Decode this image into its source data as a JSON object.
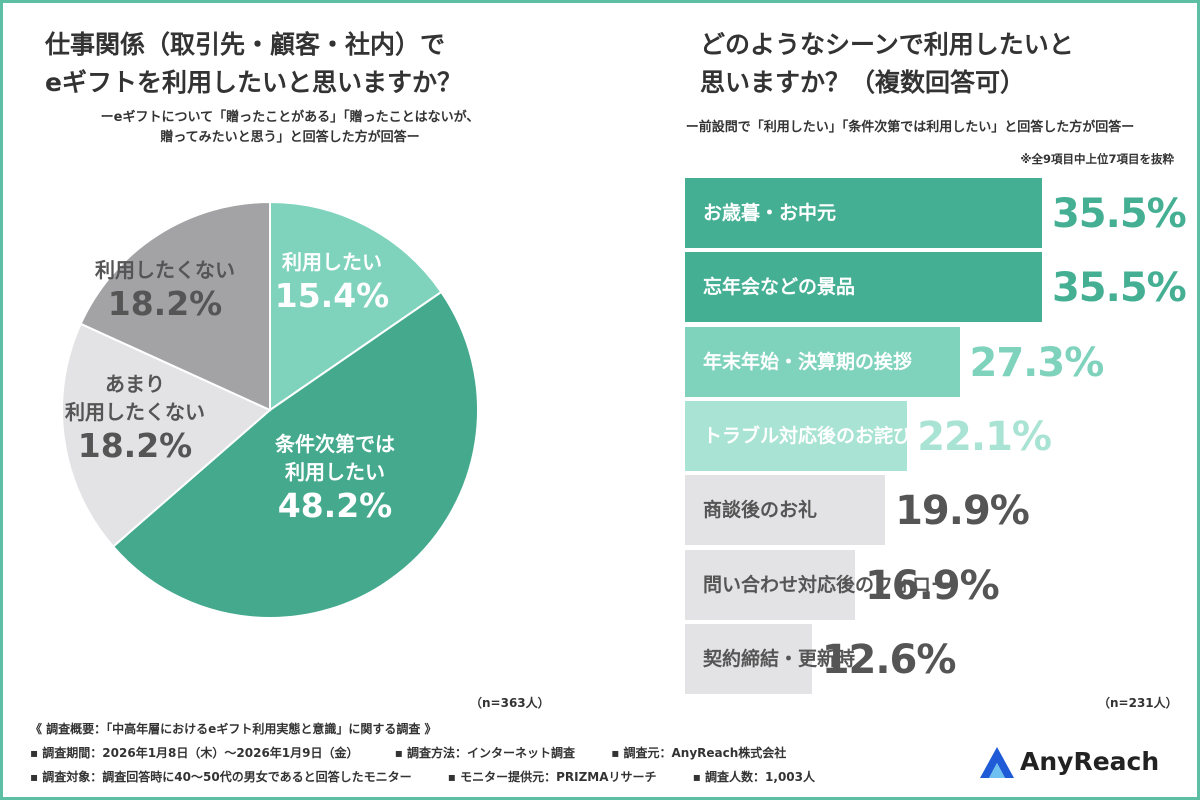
{
  "left": {
    "title_line1": "仕事関係（取引先・顧客・社内）で",
    "title_line2": "eギフトを利用したいと思いますか？",
    "subtitle_line1": "ーeギフトについて「贈ったことがある」「贈ったことはないが、",
    "subtitle_line2": "贈ってみたいと思う」と回答した方が回答ー",
    "n": "（n=363人）"
  },
  "right": {
    "title_line1": "どのようなシーンで利用したいと",
    "title_line2": "思いますか？（複数回答可）",
    "subtitle": "ー前設問で「利用したい」「条件次第では利用したい」と回答した方が回答ー",
    "note": "※全9項目中上位7項目を抜粋",
    "n": "（n=231人）"
  },
  "chart_data": [
    {
      "type": "pie",
      "start": "12 o'clock, clockwise",
      "slices": [
        {
          "label": "利用したい",
          "value": 15.4,
          "display": "15.4%",
          "color": "#7fd3bd",
          "text_color": "#ffffff"
        },
        {
          "label": "条件次第では 利用したい",
          "label_line1": "条件次第では",
          "label_line2": "利用したい",
          "value": 48.2,
          "display": "48.2%",
          "color": "#44a98d",
          "text_color": "#ffffff"
        },
        {
          "label": "あまり 利用したくない",
          "label_line1": "あまり",
          "label_line2": "利用したくない",
          "value": 18.2,
          "display": "18.2%",
          "color": "#e3e3e5",
          "text_color": "#555555"
        },
        {
          "label": "利用したくない",
          "value": 18.2,
          "display": "18.2%",
          "color": "#a3a3a6",
          "text_color": "#555555"
        }
      ]
    },
    {
      "type": "bar",
      "orientation": "horizontal",
      "xlim": [
        0,
        36
      ],
      "categories": [
        "お歳暮・お中元",
        "忘年会などの景品",
        "年末年始・決算期の挨拶",
        "トラブル対応後のお詫び",
        "商談後のお礼",
        "問い合わせ対応後のフォロー",
        "契約締結・更新時"
      ],
      "values": [
        35.5,
        35.5,
        27.3,
        22.1,
        19.9,
        16.9,
        12.6
      ],
      "labels": [
        "35.5%",
        "35.5%",
        "27.3%",
        "22.1%",
        "19.9%",
        "16.9%",
        "12.6%"
      ],
      "colors": [
        "#44af93",
        "#44af93",
        "#7fd3bd",
        "#a9e3d3",
        "#e3e3e5",
        "#e3e3e5",
        "#e3e3e5"
      ],
      "value_colors": [
        "#44af93",
        "#44af93",
        "#7fd3bd",
        "#a9e3d3",
        "#555555",
        "#555555",
        "#555555"
      ],
      "label_colors": [
        "#ffffff",
        "#ffffff",
        "#ffffff",
        "#ffffff",
        "#555555",
        "#555555",
        "#555555"
      ]
    }
  ],
  "footer": {
    "line1": "《 調査概要：「中高年層におけるeギフト利用実態と意識」に関する調査 》",
    "period": "▪ 調査期間：2026年1月8日（木）〜2026年1月9日（金）",
    "method": "▪ 調査方法：インターネット調査",
    "source": "▪ 調査元：AnyReach株式会社",
    "target": "▪ 調査対象：調査回答時に40〜50代の男女であると回答したモニター",
    "provider": "▪ モニター提供元：PRIZMAリサーチ",
    "count": "▪ 調査人数：1,003人"
  },
  "logo": {
    "text": "AnyReach",
    "icon": "anyreach-logo-icon",
    "color_dark": "#1f5bd6",
    "color_light": "#6ec0f0"
  }
}
